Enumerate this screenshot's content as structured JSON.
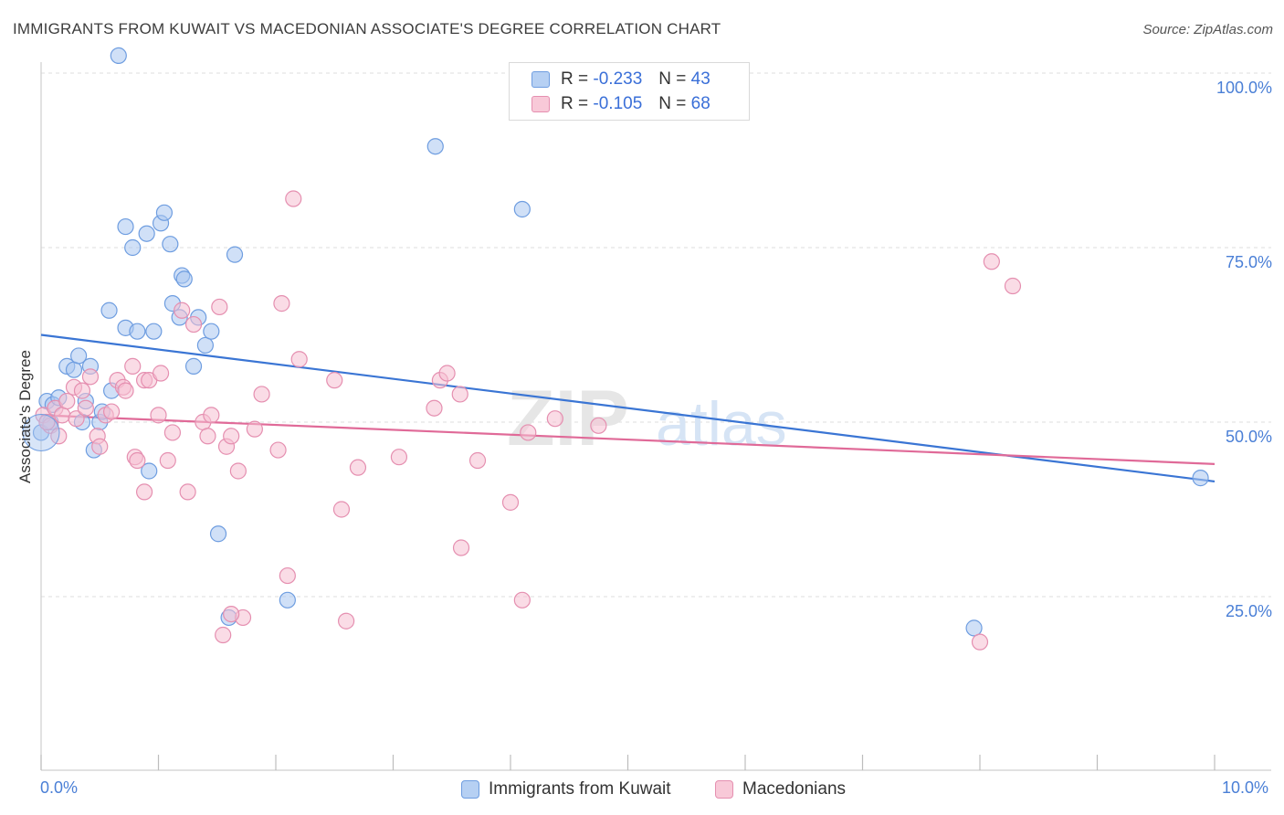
{
  "title": "IMMIGRANTS FROM KUWAIT VS MACEDONIAN ASSOCIATE'S DEGREE CORRELATION CHART",
  "source": "Source: ZipAtlas.com",
  "watermark": "ZIPatlas",
  "legend": {
    "rows": [
      {
        "r_label": "R =",
        "r_value": "-0.233",
        "n_label": "N =",
        "n_value": "43"
      },
      {
        "r_label": "R =",
        "r_value": "-0.105",
        "n_label": "N =",
        "n_value": "68"
      }
    ]
  },
  "chart_data": {
    "type": "scatter",
    "title": "IMMIGRANTS FROM KUWAIT VS MACEDONIAN ASSOCIATE'S DEGREE CORRELATION CHART",
    "xlabel": "",
    "ylabel": "Associate's Degree",
    "xlim": [
      0,
      10
    ],
    "ylim": [
      0,
      105
    ],
    "x_tick_labels": [
      "0.0%",
      "10.0%"
    ],
    "y_ticks": [
      25,
      50,
      75,
      100
    ],
    "y_tick_labels": [
      "25.0%",
      "50.0%",
      "75.0%",
      "100.0%"
    ],
    "grid": true,
    "series": [
      {
        "name": "Immigrants from Kuwait",
        "color": "#6e9de0",
        "fill": "#a9c6f0",
        "R": -0.233,
        "N": 43,
        "trend": {
          "x": [
            0,
            10
          ],
          "y": [
            62.5,
            41.5
          ]
        },
        "points": [
          [
            0.66,
            102.5
          ],
          [
            0.0,
            48.5
          ],
          [
            0.05,
            53
          ],
          [
            0.1,
            52.5
          ],
          [
            0.15,
            53.5
          ],
          [
            0.22,
            58
          ],
          [
            0.28,
            57.5
          ],
          [
            0.32,
            59.5
          ],
          [
            0.35,
            50
          ],
          [
            0.38,
            53
          ],
          [
            0.42,
            58
          ],
          [
            0.45,
            46
          ],
          [
            0.5,
            50
          ],
          [
            0.52,
            51.5
          ],
          [
            0.6,
            54.5
          ],
          [
            0.58,
            66
          ],
          [
            0.72,
            78
          ],
          [
            0.78,
            75
          ],
          [
            0.72,
            63.5
          ],
          [
            0.82,
            63
          ],
          [
            0.96,
            63
          ],
          [
            0.9,
            77
          ],
          [
            1.02,
            78.5
          ],
          [
            1.05,
            80
          ],
          [
            1.1,
            75.5
          ],
          [
            1.12,
            67
          ],
          [
            1.18,
            65
          ],
          [
            1.2,
            71
          ],
          [
            1.22,
            70.5
          ],
          [
            1.3,
            58
          ],
          [
            1.34,
            65
          ],
          [
            1.4,
            61
          ],
          [
            1.45,
            63
          ],
          [
            0.92,
            43
          ],
          [
            1.51,
            34
          ],
          [
            1.6,
            22
          ],
          [
            1.65,
            74
          ],
          [
            2.1,
            24.5
          ],
          [
            3.36,
            89.5
          ],
          [
            4.1,
            80.5
          ],
          [
            7.95,
            20.5
          ],
          [
            9.88,
            42
          ],
          [
            0.08,
            50
          ]
        ]
      },
      {
        "name": "Macedonians",
        "color": "#e58fb0",
        "fill": "#f5bfd2",
        "R": -0.105,
        "N": 68,
        "trend": {
          "x": [
            0,
            10
          ],
          "y": [
            51,
            44
          ]
        },
        "points": [
          [
            0.02,
            51
          ],
          [
            0.08,
            49.5
          ],
          [
            0.12,
            52
          ],
          [
            0.18,
            51
          ],
          [
            0.22,
            53
          ],
          [
            0.28,
            55
          ],
          [
            0.3,
            50.5
          ],
          [
            0.35,
            54.5
          ],
          [
            0.38,
            52
          ],
          [
            0.42,
            56.5
          ],
          [
            0.48,
            48
          ],
          [
            0.5,
            46.5
          ],
          [
            0.55,
            51
          ],
          [
            0.6,
            51.5
          ],
          [
            0.65,
            56
          ],
          [
            0.7,
            55
          ],
          [
            0.72,
            54.5
          ],
          [
            0.78,
            58
          ],
          [
            0.8,
            45
          ],
          [
            0.82,
            44.5
          ],
          [
            0.88,
            56
          ],
          [
            0.88,
            40
          ],
          [
            0.92,
            56
          ],
          [
            1.0,
            51
          ],
          [
            1.02,
            57
          ],
          [
            1.08,
            44.5
          ],
          [
            1.12,
            48.5
          ],
          [
            1.2,
            66
          ],
          [
            1.25,
            40
          ],
          [
            1.3,
            64
          ],
          [
            1.38,
            50
          ],
          [
            1.42,
            48
          ],
          [
            1.45,
            51
          ],
          [
            1.52,
            66.5
          ],
          [
            1.58,
            46.5
          ],
          [
            1.62,
            48
          ],
          [
            1.68,
            43
          ],
          [
            1.72,
            22
          ],
          [
            1.82,
            49
          ],
          [
            1.88,
            54
          ],
          [
            2.02,
            46
          ],
          [
            2.05,
            67
          ],
          [
            2.1,
            28
          ],
          [
            2.15,
            82
          ],
          [
            2.2,
            59
          ],
          [
            2.5,
            56
          ],
          [
            2.56,
            37.5
          ],
          [
            2.6,
            21.5
          ],
          [
            2.7,
            43.5
          ],
          [
            3.05,
            45
          ],
          [
            3.35,
            52
          ],
          [
            3.4,
            56
          ],
          [
            3.46,
            57
          ],
          [
            3.57,
            54
          ],
          [
            3.58,
            32
          ],
          [
            3.72,
            44.5
          ],
          [
            4.0,
            38.5
          ],
          [
            4.1,
            24.5
          ],
          [
            4.15,
            48.5
          ],
          [
            4.38,
            50.5
          ],
          [
            4.75,
            49.5
          ],
          [
            8.0,
            18.5
          ],
          [
            8.1,
            73
          ],
          [
            8.28,
            69.5
          ],
          [
            0.05,
            50
          ],
          [
            1.55,
            19.5
          ],
          [
            1.62,
            22.5
          ],
          [
            0.15,
            48
          ]
        ]
      }
    ]
  },
  "bottom_legend": {
    "items": [
      {
        "label": "Immigrants from Kuwait"
      },
      {
        "label": "Macedonians"
      }
    ]
  }
}
